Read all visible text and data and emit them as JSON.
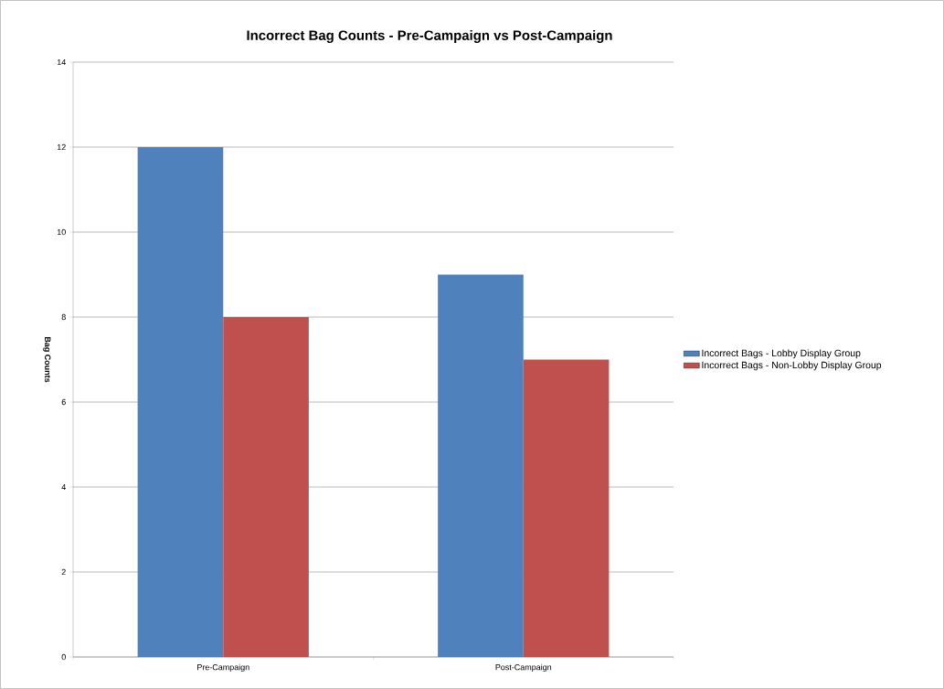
{
  "chart_data": {
    "type": "bar",
    "title": "Incorrect Bag Counts - Pre-Campaign vs Post-Campaign",
    "ylabel": "Bag Counts",
    "categories": [
      "Pre-Campaign",
      "Post-Campaign"
    ],
    "series": [
      {
        "name": "Incorrect Bags - Lobby Display Group",
        "color": "#4f81bd",
        "values": [
          12,
          9
        ]
      },
      {
        "name": "Incorrect Bags - Non-Lobby Display Group",
        "color": "#c0504d",
        "values": [
          8,
          7
        ]
      }
    ],
    "ylim": [
      0,
      14
    ],
    "yticks": [
      0,
      2,
      4,
      6,
      8,
      10,
      12,
      14
    ],
    "grid": "y",
    "legend": "right"
  }
}
